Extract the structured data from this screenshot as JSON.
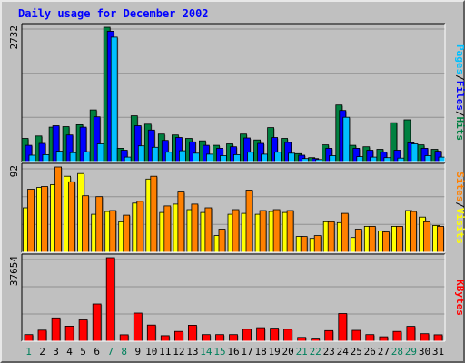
{
  "chart_data": {
    "type": "bar",
    "title": "Daily usage for December 2002",
    "categories": [
      "1",
      "2",
      "3",
      "4",
      "5",
      "6",
      "7",
      "8",
      "9",
      "10",
      "11",
      "12",
      "13",
      "14",
      "15",
      "16",
      "17",
      "18",
      "19",
      "20",
      "21",
      "22",
      "23",
      "24",
      "25",
      "26",
      "27",
      "28",
      "29",
      "30",
      "31"
    ],
    "weekend_days": [
      "1",
      "7",
      "8",
      "14",
      "15",
      "21",
      "22",
      "28",
      "29"
    ],
    "panels": [
      {
        "id": "hits_files_pages",
        "ylabel_parts": [
          "Pages",
          "Files",
          "Hits"
        ],
        "ymax_label": "2732",
        "ylim": [
          0,
          2732
        ],
        "grid": true,
        "series": [
          {
            "name": "Hits",
            "color": "#008040",
            "values": [
              470,
              520,
              700,
              710,
              750,
              1050,
              2732,
              270,
              930,
              760,
              560,
              540,
              470,
              420,
              330,
              360,
              560,
              440,
              690,
              470,
              160,
              80,
              340,
              1150,
              330,
              300,
              250,
              790,
              850,
              340,
              250
            ]
          },
          {
            "name": "Files",
            "color": "#0000ff",
            "values": [
              330,
              370,
              730,
              540,
              700,
              910,
              2650,
              230,
              730,
              640,
              430,
              490,
              400,
              330,
              270,
              300,
              480,
              370,
              490,
              390,
              130,
              60,
              270,
              1040,
              270,
              230,
              190,
              230,
              380,
              270,
              210
            ]
          },
          {
            "name": "Pages",
            "color": "#00c0ff",
            "values": [
              130,
              140,
              210,
              180,
              200,
              360,
              2530,
              90,
              320,
              290,
              190,
              220,
              170,
              150,
              120,
              140,
              190,
              150,
              190,
              170,
              60,
              40,
              120,
              900,
              100,
              90,
              80,
              70,
              360,
              120,
              90
            ]
          }
        ]
      },
      {
        "id": "visits_sites",
        "ylabel_parts": [
          "Sites",
          "Visits"
        ],
        "ymax_label": "92",
        "ylim": [
          0,
          92
        ],
        "grid": true,
        "series": [
          {
            "name": "Visits",
            "color": "#ffff00",
            "values": [
              48,
              70,
              73,
              82,
              85,
              41,
              44,
              33,
              53,
              79,
              43,
              52,
              46,
              43,
              18,
              41,
              42,
              41,
              44,
              43,
              17,
              15,
              33,
              32,
              16,
              28,
              23,
              28,
              45,
              38,
              29
            ]
          },
          {
            "name": "Sites",
            "color": "#ff8000",
            "values": [
              68,
              71,
              92,
              76,
              61,
              60,
              45,
              40,
              55,
              82,
              50,
              65,
              52,
              48,
              25,
              46,
              67,
              45,
              46,
              45,
              17,
              18,
              33,
              42,
              25,
              28,
              22,
              28,
              44,
              33,
              28
            ]
          }
        ]
      },
      {
        "id": "kbytes",
        "ylabel_parts": [
          "KBytes"
        ],
        "ymax_label": "37654",
        "ylim": [
          0,
          37654
        ],
        "grid": true,
        "series": [
          {
            "name": "KBytes",
            "color": "#ff0000",
            "values": [
              3000,
              5000,
              10500,
              6800,
              9600,
              16800,
              37654,
              2900,
              12700,
              7300,
              2500,
              4400,
              7200,
              3000,
              3000,
              3000,
              5400,
              6100,
              5900,
              5400,
              1700,
              1000,
              4800,
              12500,
              4900,
              3000,
              2000,
              4400,
              6700,
              3400,
              2900
            ]
          }
        ]
      }
    ]
  }
}
